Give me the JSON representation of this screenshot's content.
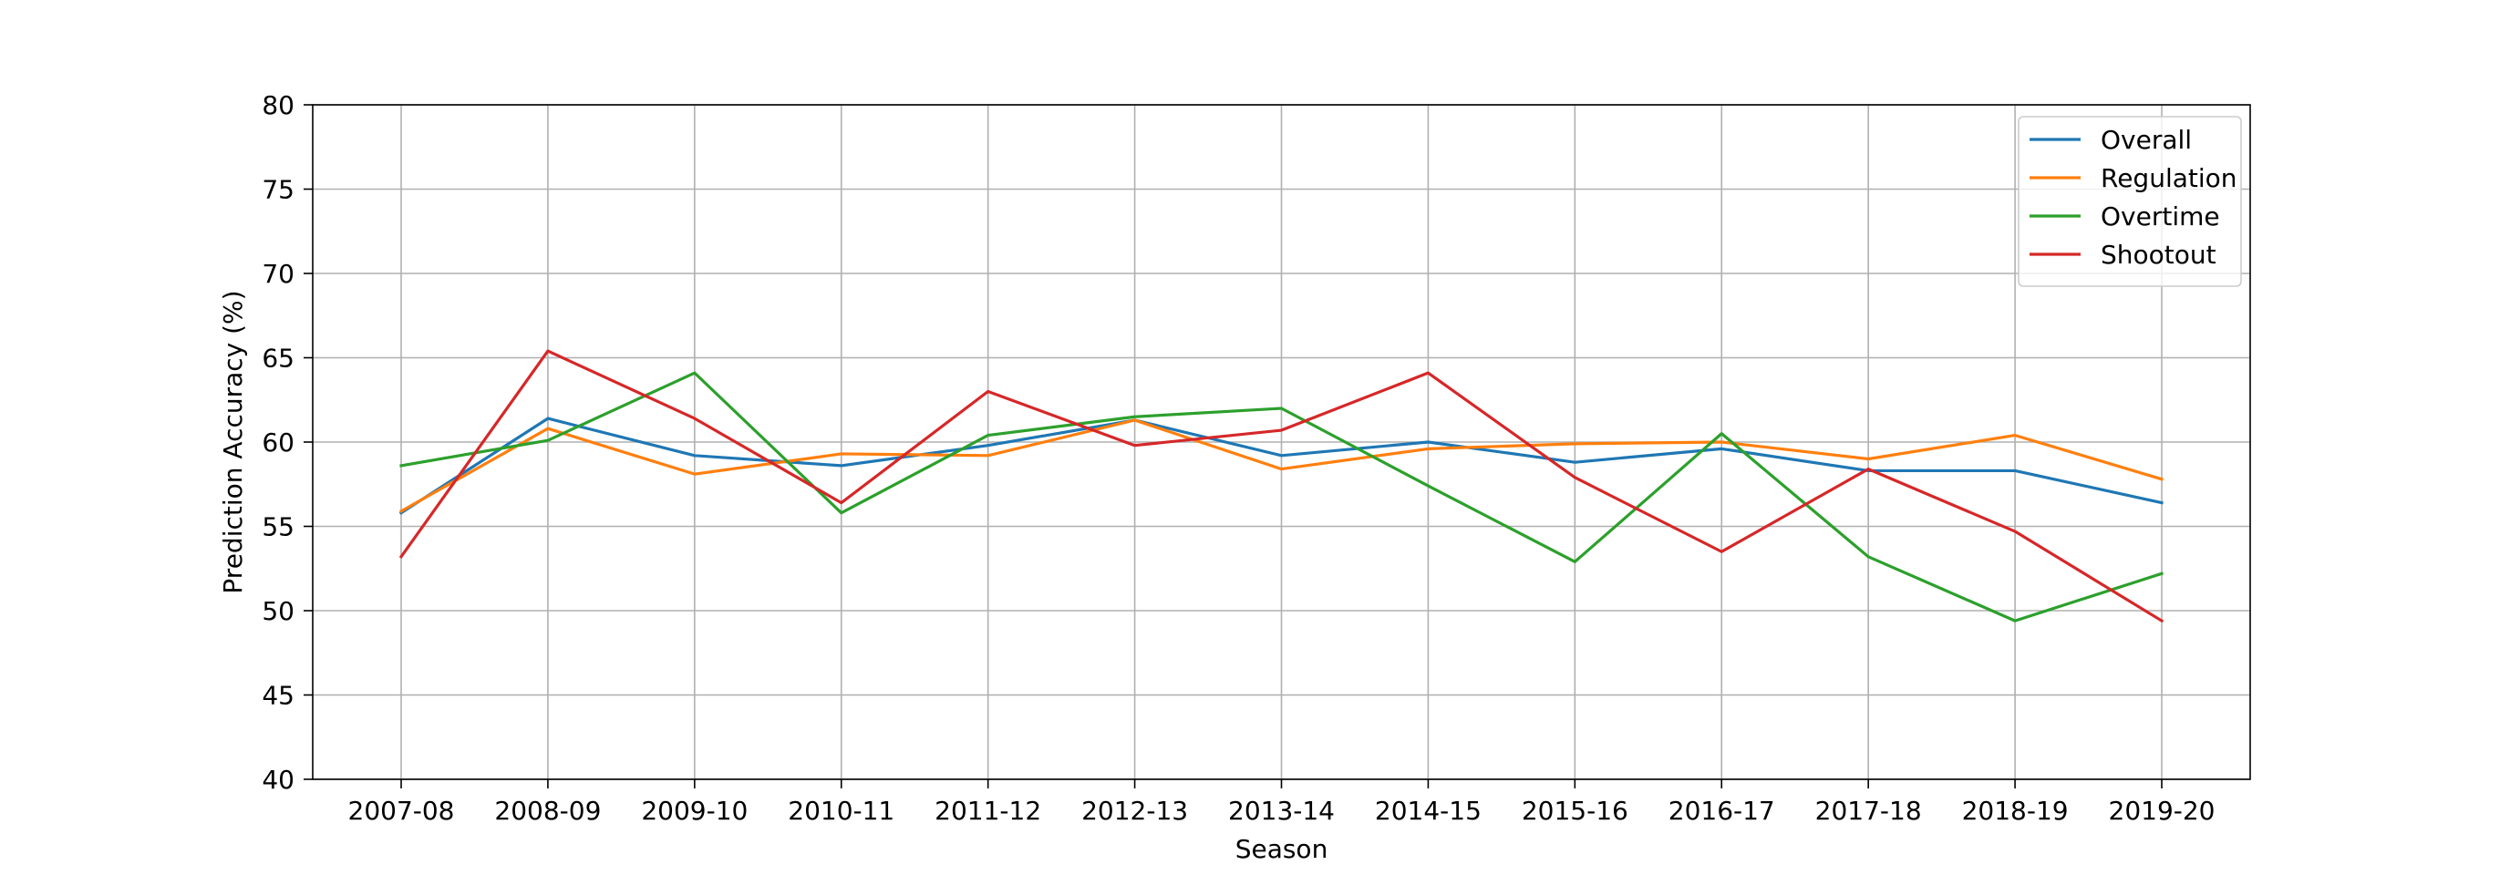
{
  "chart_data": {
    "type": "line",
    "title": "",
    "xlabel": "Season",
    "ylabel": "Prediction Accuracy (%)",
    "ylim": [
      40,
      80
    ],
    "yticks": [
      40,
      45,
      50,
      55,
      60,
      65,
      70,
      75,
      80
    ],
    "grid": true,
    "legend_position": "top-right",
    "categories": [
      "2007-08",
      "2008-09",
      "2009-10",
      "2010-11",
      "2011-12",
      "2012-13",
      "2013-14",
      "2014-15",
      "2015-16",
      "2016-17",
      "2017-18",
      "2018-19",
      "2019-20"
    ],
    "series": [
      {
        "name": "Overall",
        "color": "#1f77b4",
        "values": [
          55.8,
          61.4,
          59.2,
          58.6,
          59.8,
          61.3,
          59.2,
          60.0,
          58.8,
          59.6,
          58.3,
          58.3,
          56.4
        ]
      },
      {
        "name": "Regulation",
        "color": "#ff7f0e",
        "values": [
          55.9,
          60.8,
          58.1,
          59.3,
          59.2,
          61.3,
          58.4,
          59.6,
          59.9,
          60.0,
          59.0,
          60.4,
          57.8
        ]
      },
      {
        "name": "Overtime",
        "color": "#2ca02c",
        "values": [
          58.6,
          60.1,
          64.1,
          55.8,
          60.4,
          61.5,
          62.0,
          57.4,
          52.9,
          60.5,
          53.2,
          49.4,
          52.2
        ]
      },
      {
        "name": "Shootout",
        "color": "#d62728",
        "values": [
          53.2,
          65.4,
          61.4,
          56.4,
          63.0,
          59.8,
          60.7,
          64.1,
          57.9,
          53.5,
          58.4,
          54.7,
          49.4
        ]
      }
    ]
  }
}
